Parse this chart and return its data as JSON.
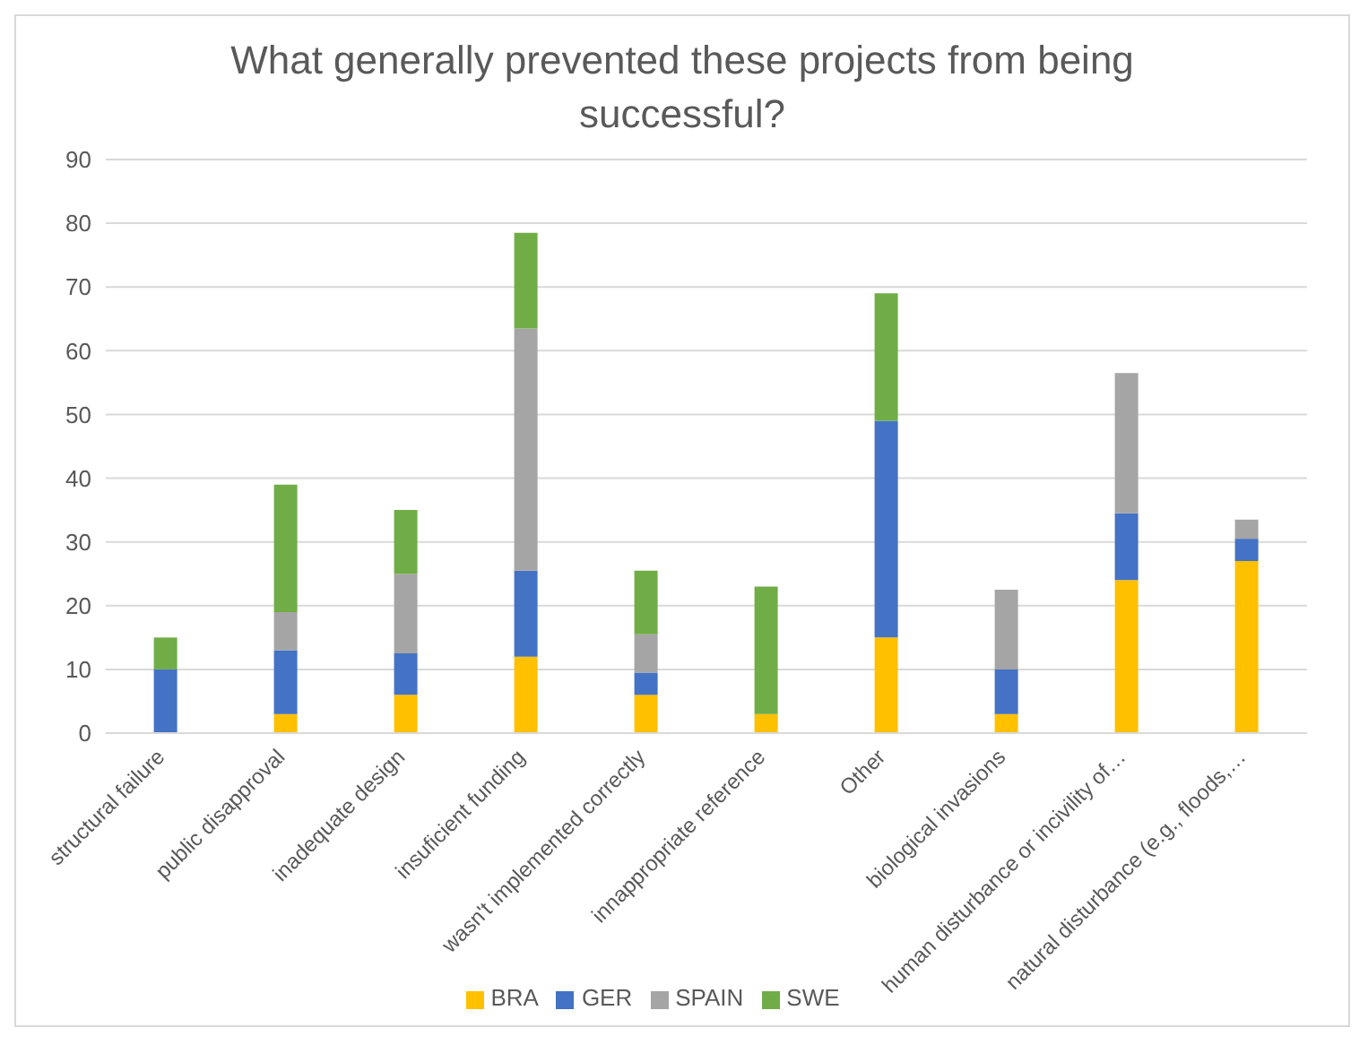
{
  "chart_data": {
    "type": "bar",
    "title": "What generally prevented these projects from being successful?",
    "stacked": true,
    "categories": [
      "structural failure",
      "public disapproval",
      "inadequate design",
      "insuficient funding",
      "wasn't implemented correctly",
      "innappropriate reference",
      "Other",
      "biological invasions",
      "human disturbance or incivility of…",
      "natural disturbance (e.g., floods,…"
    ],
    "series": [
      {
        "name": "BRA",
        "color": "#ffc000",
        "values": [
          0,
          3,
          6,
          12,
          6,
          3,
          15,
          3,
          24,
          27
        ]
      },
      {
        "name": "GER",
        "color": "#4472c4",
        "values": [
          10,
          10,
          6.5,
          13.5,
          3.5,
          0,
          34,
          7,
          10.5,
          3.5
        ]
      },
      {
        "name": "SPAIN",
        "color": "#a5a5a5",
        "values": [
          0,
          6,
          12.5,
          38,
          6,
          0,
          0,
          12.5,
          22,
          3
        ]
      },
      {
        "name": "SWE",
        "color": "#70ad47",
        "values": [
          5,
          20,
          10,
          15,
          10,
          20,
          20,
          0,
          0,
          0
        ]
      }
    ],
    "ylim": [
      0,
      90
    ],
    "yticks": [
      0,
      10,
      20,
      30,
      40,
      50,
      60,
      70,
      80,
      90
    ],
    "grid": "y",
    "legend": "bottom"
  }
}
